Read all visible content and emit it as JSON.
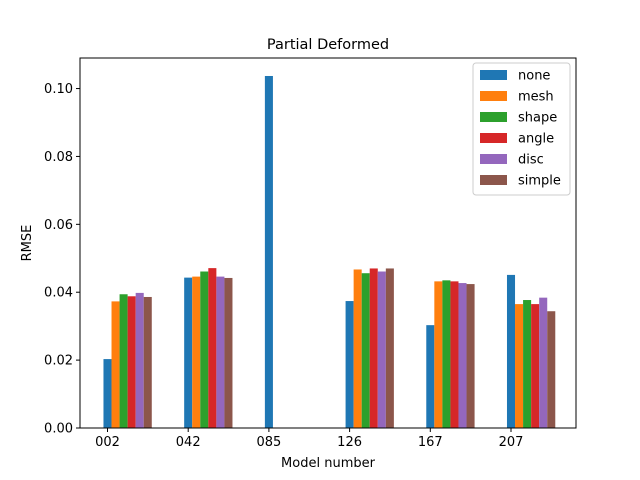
{
  "chart_data": {
    "type": "bar",
    "title": "Partial Deformed",
    "xlabel": "Model number",
    "ylabel": "RMSE",
    "categories": [
      "002",
      "042",
      "085",
      "126",
      "167",
      "207"
    ],
    "ylim": [
      0,
      0.109
    ],
    "yticks": [
      "0.00",
      "0.02",
      "0.04",
      "0.06",
      "0.08",
      "0.10"
    ],
    "legend_position": "top-right",
    "grid": false,
    "series": [
      {
        "name": "none",
        "color": "#1f77b4",
        "values": [
          0.0203,
          0.0443,
          0.1037,
          0.0374,
          0.0303,
          0.0451
        ]
      },
      {
        "name": "mesh",
        "color": "#ff7f0e",
        "values": [
          0.0373,
          0.0446,
          null,
          0.0467,
          0.0432,
          0.0365
        ]
      },
      {
        "name": "shape",
        "color": "#2ca02c",
        "values": [
          0.0394,
          0.0461,
          null,
          0.0456,
          0.0435,
          0.0377
        ]
      },
      {
        "name": "angle",
        "color": "#d62728",
        "values": [
          0.0388,
          0.0471,
          null,
          0.047,
          0.0432,
          0.0365
        ]
      },
      {
        "name": "disc",
        "color": "#9467bd",
        "values": [
          0.0398,
          0.0446,
          null,
          0.0461,
          0.0427,
          0.0384
        ]
      },
      {
        "name": "simple",
        "color": "#8c564b",
        "values": [
          0.0386,
          0.0442,
          null,
          0.047,
          0.0424,
          0.0344
        ]
      }
    ]
  }
}
